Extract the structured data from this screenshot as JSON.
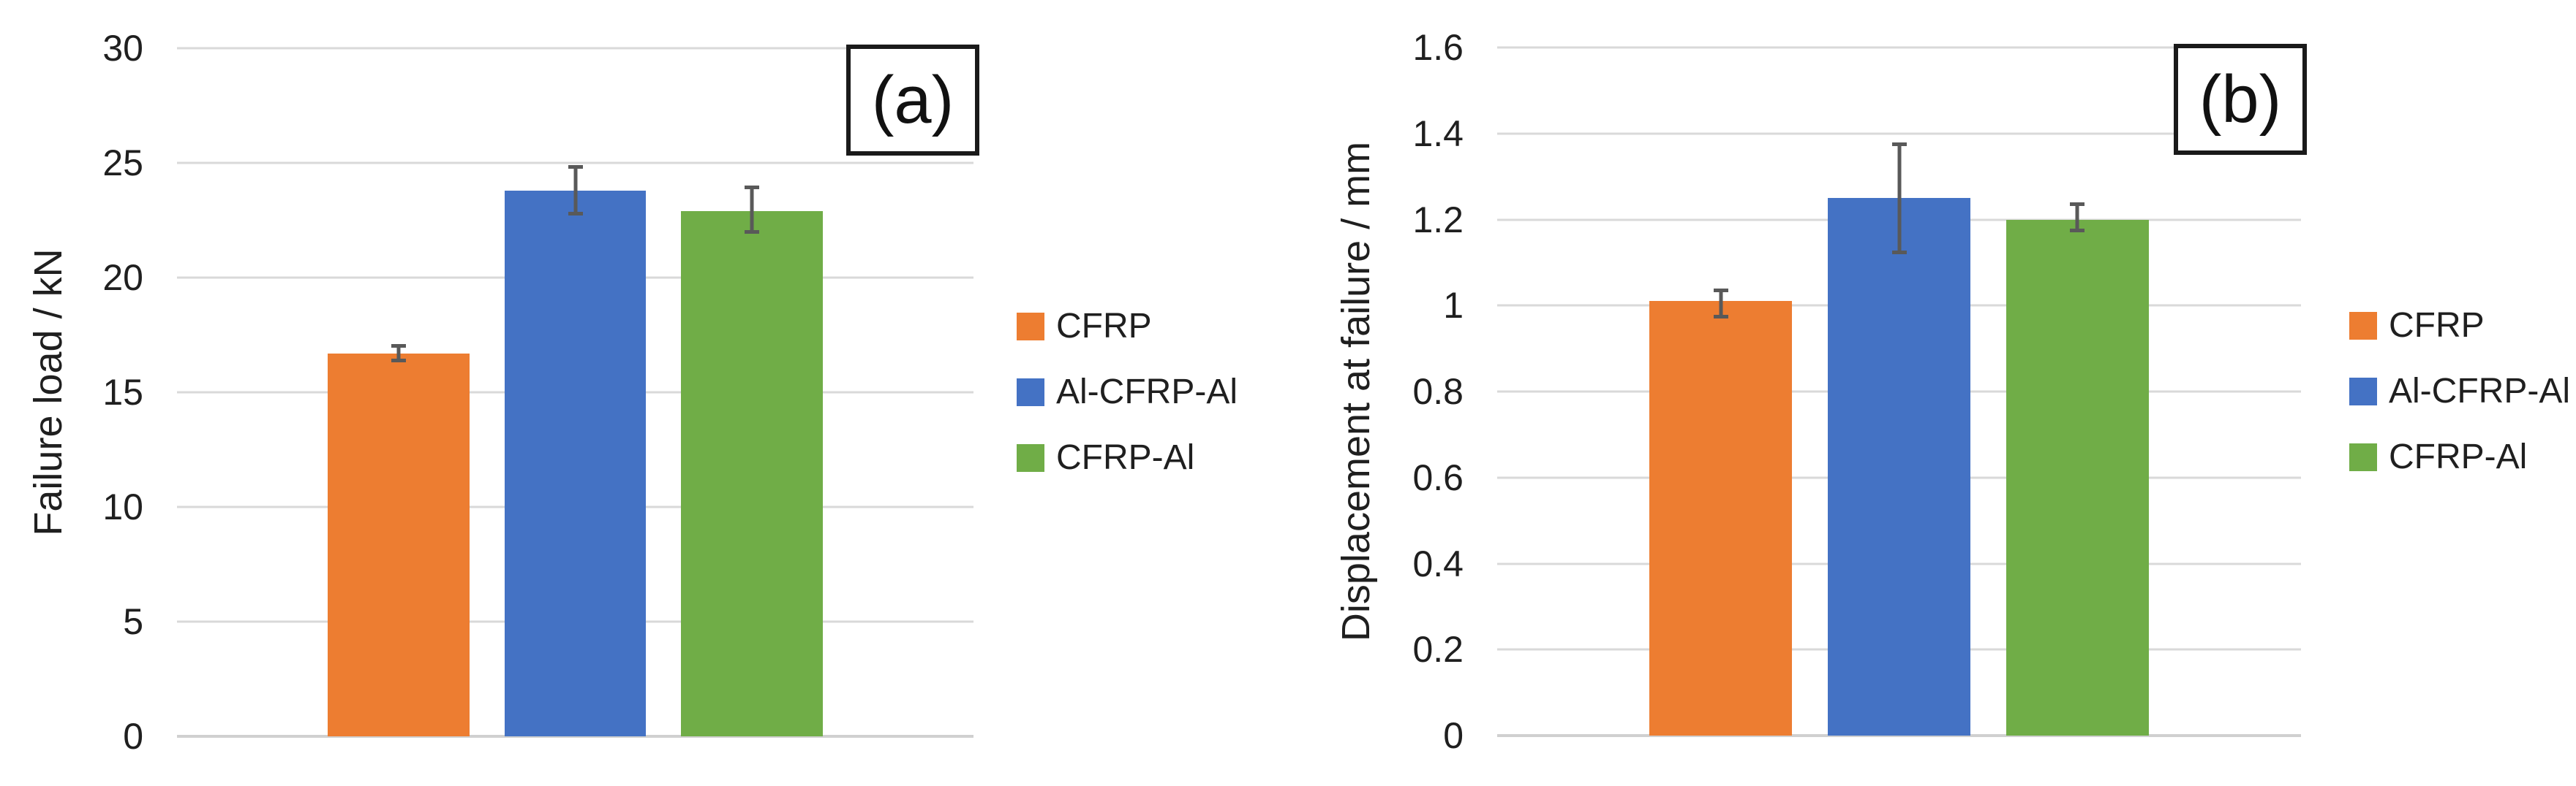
{
  "colors": {
    "background": "#ffffff",
    "gridline": "#D9D9D9",
    "axis_line": "#D0D0D0",
    "error_bar": "#595959",
    "text": "#1f1f1f",
    "panel_box_border": "#1a1a1a",
    "cfrp_orange": "#ED7D31",
    "al_cfrp_al_blue": "#4472C4",
    "cfrp_al_green": "#70AD47"
  },
  "chart_data": [
    {
      "type": "bar",
      "panel_label": "(a)",
      "title": "",
      "xlabel": "",
      "ylabel": "Failure load / kN",
      "ylim": [
        0,
        30
      ],
      "ytick_step": 5,
      "grid": true,
      "legend_position": "right",
      "yticks": [
        {
          "value": 30,
          "label": "30"
        },
        {
          "value": 25,
          "label": "25"
        },
        {
          "value": 20,
          "label": "20"
        },
        {
          "value": 15,
          "label": "15"
        },
        {
          "value": 10,
          "label": "10"
        },
        {
          "value": 5,
          "label": "5"
        },
        {
          "value": 0,
          "label": "0"
        }
      ],
      "categories": [
        "CFRP",
        "Al-CFRP-Al",
        "CFRP-Al"
      ],
      "values": [
        16.7,
        23.8,
        22.9
      ],
      "error_low": [
        16.3,
        22.7,
        21.9
      ],
      "error_high": [
        17.1,
        24.9,
        24.0
      ],
      "legend": [
        {
          "label": "CFRP",
          "color": "#ED7D31"
        },
        {
          "label": "Al-CFRP-Al",
          "color": "#4472C4"
        },
        {
          "label": "CFRP-Al",
          "color": "#70AD47"
        }
      ]
    },
    {
      "type": "bar",
      "panel_label": "(b)",
      "title": "",
      "xlabel": "",
      "ylabel": "Displacement at failure / mm",
      "ylim": [
        0,
        1.6
      ],
      "ytick_step": 0.2,
      "grid": true,
      "legend_position": "right",
      "yticks": [
        {
          "value": 1.6,
          "label": "1.6"
        },
        {
          "value": 1.4,
          "label": "1.4"
        },
        {
          "value": 1.2,
          "label": "1.2"
        },
        {
          "value": 1.0,
          "label": "1"
        },
        {
          "value": 0.8,
          "label": "0.8"
        },
        {
          "value": 0.6,
          "label": "0.6"
        },
        {
          "value": 0.4,
          "label": "0.4"
        },
        {
          "value": 0.2,
          "label": "0.2"
        },
        {
          "value": 0,
          "label": "0"
        }
      ],
      "categories": [
        "CFRP",
        "Al-CFRP-Al",
        "CFRP-Al"
      ],
      "values": [
        1.01,
        1.25,
        1.2
      ],
      "error_low": [
        0.97,
        1.12,
        1.17
      ],
      "error_high": [
        1.04,
        1.38,
        1.24
      ],
      "legend": [
        {
          "label": "CFRP",
          "color": "#ED7D31"
        },
        {
          "label": "Al-CFRP-Al",
          "color": "#4472C4"
        },
        {
          "label": "CFRP-Al",
          "color": "#70AD47"
        }
      ]
    }
  ]
}
